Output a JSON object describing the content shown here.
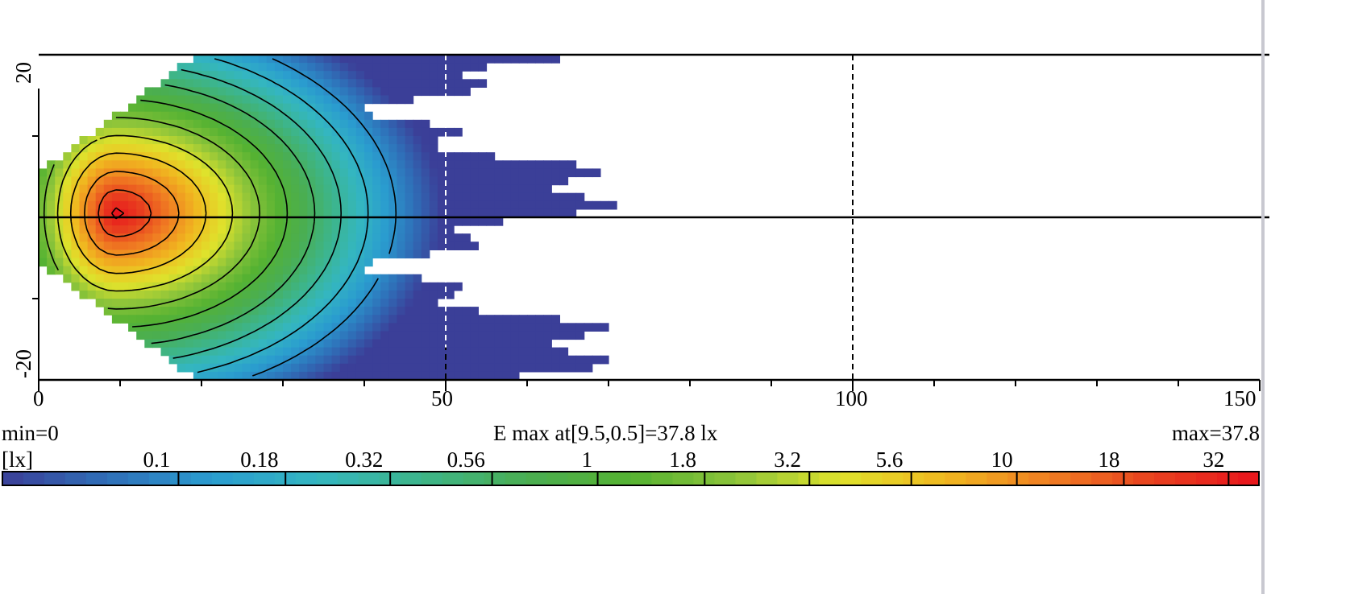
{
  "chart_data": {
    "type": "heatmap",
    "title": "E max at[9.5,0.5]=37.8 lx",
    "min_label": "min=0",
    "max_label": "max=37.8",
    "unit_label": "[lx]",
    "min": 0,
    "max": 37.8,
    "max_location": [
      9.5,
      0.5
    ],
    "xlim": [
      0,
      150
    ],
    "ylim": [
      -20,
      20
    ],
    "x_ticks": [
      "0",
      "50",
      "100",
      "150"
    ],
    "y_ticks": [
      "20",
      "-20"
    ],
    "grid": {
      "dashed_x": [
        50,
        100
      ],
      "solid_y": [
        20,
        0
      ]
    },
    "colorbar": {
      "scale": "log",
      "levels": [
        "0.1",
        "0.18",
        "0.32",
        "0.56",
        "1",
        "1.8",
        "3.2",
        "5.6",
        "10",
        "18",
        "32"
      ],
      "colors": [
        "#3b3f98",
        "#2f6fb8",
        "#2a9ccf",
        "#34b6c0",
        "#3db58a",
        "#4aae52",
        "#55b232",
        "#8cc43a",
        "#dfe22c",
        "#f0b820",
        "#f07e22",
        "#e8401f",
        "#e8141c"
      ]
    },
    "contour_levels": [
      0.1,
      0.18,
      0.32,
      0.56,
      1,
      1.8,
      3.2,
      5.6,
      10,
      18,
      32
    ]
  }
}
